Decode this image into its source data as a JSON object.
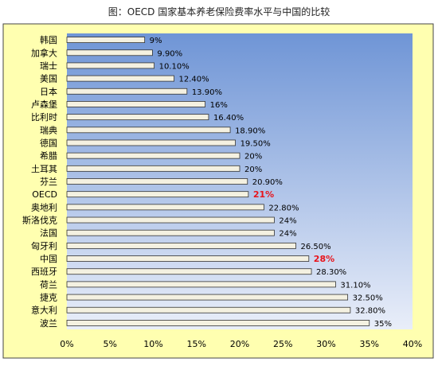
{
  "colors": {
    "frame_bg": "#ffffb0",
    "plot_bg_top": "#6f95d6",
    "plot_bg_bottom": "#e9eef9",
    "bar_fill": "#f4f1e1",
    "bar_stroke": "#333333",
    "highlight_label": "#e8141b"
  },
  "chart_data": {
    "type": "bar",
    "orientation": "horizontal",
    "title": "图：OECD 国家基本养老保险费率水平与中国的比较",
    "categories": [
      "韩国",
      "加拿大",
      "瑞士",
      "美国",
      "日本",
      "卢森堡",
      "比利时",
      "瑞典",
      "德国",
      "希腊",
      "土耳其",
      "芬兰",
      "OECD",
      "奥地利",
      "斯洛伐克",
      "法国",
      "匈牙利",
      "中国",
      "西班牙",
      "荷兰",
      "捷克",
      "意大利",
      "波兰"
    ],
    "values": [
      9,
      9.9,
      10.1,
      12.4,
      13.9,
      16,
      16.4,
      18.9,
      19.5,
      20,
      20,
      20.9,
      21,
      22.8,
      24,
      24,
      26.5,
      28,
      28.3,
      31.1,
      32.5,
      32.8,
      35
    ],
    "data_labels": [
      "9%",
      "9.90%",
      "10.10%",
      "12.40%",
      "13.90%",
      "16%",
      "16.40%",
      "18.90%",
      "19.50%",
      "20%",
      "20%",
      "20.90%",
      "21%",
      "22.80%",
      "24%",
      "24%",
      "26.50%",
      "28%",
      "28.30%",
      "31.10%",
      "32.50%",
      "32.80%",
      "35%"
    ],
    "highlighted": [
      "OECD",
      "中国"
    ],
    "xlim": [
      0,
      40
    ],
    "x_ticks": [
      "0%",
      "5%",
      "10%",
      "15%",
      "20%",
      "25%",
      "30%",
      "35%",
      "40%"
    ],
    "xlabel": "",
    "ylabel": "",
    "grid": false,
    "legend": "none"
  }
}
